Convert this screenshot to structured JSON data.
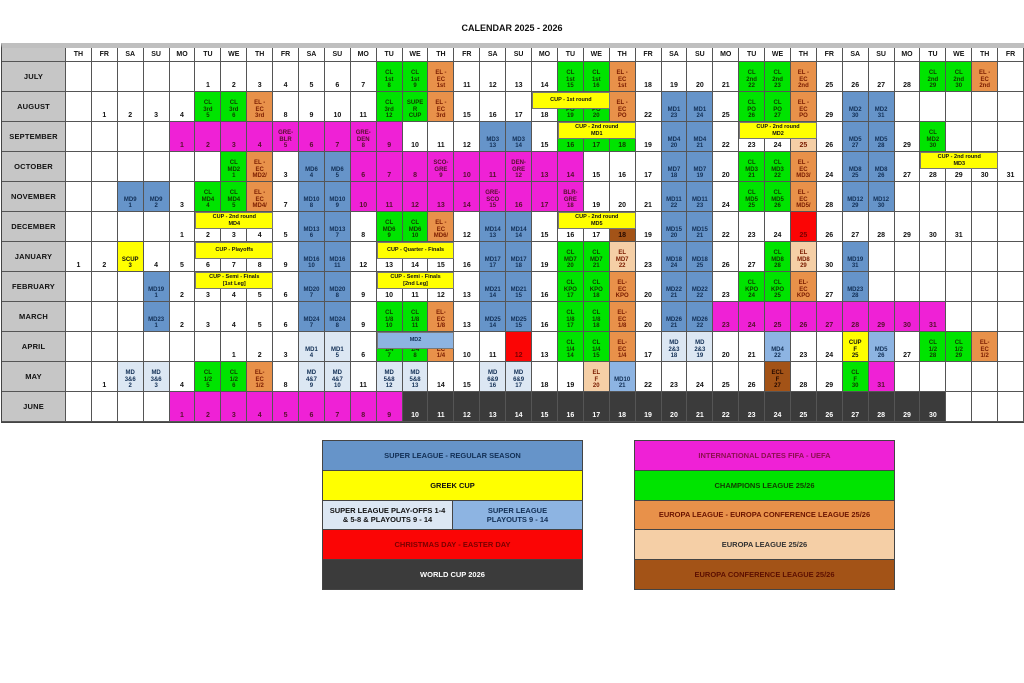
{
  "title": "CALENDAR 2025 - 2026",
  "palette": {
    "cl": "#00e400",
    "elec": "#e8914a",
    "el": "#f5cfa6",
    "ecl": "#a35317",
    "md": "#6694c9",
    "int": "#ef21d6",
    "po": "#dce7f3",
    "po2": "#8db4e2",
    "cup": "#ffff00",
    "red": "#fb0505",
    "wc": "#3b3b3b",
    "label_gray": "#c6c6c6"
  },
  "weekday_pattern": [
    "TH",
    "FR",
    "SA",
    "SU",
    "MO",
    "TU",
    "WE"
  ],
  "day_columns": 37,
  "months": [
    {
      "name": "JULY",
      "start": 6,
      "days": 31,
      "events": {
        "8": {
          "t": "cl",
          "x": "CL\n1st\n8"
        },
        "9": {
          "t": "cl",
          "x": "CL\n1st\n9"
        },
        "10": {
          "t": "elec",
          "x": "EL -\nEC\n1st"
        },
        "15": {
          "t": "cl",
          "x": "CL\n1st\n15"
        },
        "16": {
          "t": "cl",
          "x": "CL\n1st\n16"
        },
        "17": {
          "t": "elec",
          "x": "EL -\nEC\n1st"
        },
        "22": {
          "t": "cl",
          "x": "CL\n2nd\n22"
        },
        "23": {
          "t": "cl",
          "x": "CL\n2nd\n23"
        },
        "24": {
          "t": "elec",
          "x": "EL -\nEC\n2nd"
        },
        "29": {
          "t": "cl",
          "x": "CL\n2nd\n29"
        },
        "30": {
          "t": "cl",
          "x": "CL\n2nd\n30"
        },
        "31": {
          "t": "elec",
          "x": "EL -\nEC\n2nd"
        }
      },
      "banners": []
    },
    {
      "name": "AUGUST",
      "start": 2,
      "days": 31,
      "events": {
        "5": {
          "t": "cl",
          "x": "CL\n3rd\n5"
        },
        "6": {
          "t": "cl",
          "x": "CL\n3rd\n6"
        },
        "7": {
          "t": "elec",
          "x": "EL -\nEC\n3rd"
        },
        "12": {
          "t": "cl",
          "x": "CL\n3rd\n12"
        },
        "13": {
          "t": "cl",
          "x": "SUPE\nR\nCUP"
        },
        "14": {
          "t": "elec",
          "x": "EL -\nEC\n3rd"
        },
        "19": {
          "t": "cl",
          "x": "PO\n19"
        },
        "20": {
          "t": "cl",
          "x": "PO\n20"
        },
        "21": {
          "t": "elec",
          "x": "EL -\nEC\nPO"
        },
        "23": {
          "t": "md",
          "x": "MD1\n23"
        },
        "24": {
          "t": "md",
          "x": "MD1\n24"
        },
        "26": {
          "t": "cl",
          "x": "CL\nPO\n26"
        },
        "27": {
          "t": "cl",
          "x": "CL\nPO\n27"
        },
        "28": {
          "t": "elec",
          "x": "EL -\nEC\nPO"
        },
        "30": {
          "t": "md",
          "x": "MD2\n30"
        },
        "31": {
          "t": "md",
          "x": "MD2\n31"
        }
      },
      "banners": [
        {
          "x": "CUP - 1st round",
          "d1": 18,
          "d2": 20
        }
      ]
    },
    {
      "name": "SEPTEMBER",
      "start": 5,
      "days": 30,
      "events": {
        "1": {
          "t": "int"
        },
        "2": {
          "t": "int"
        },
        "3": {
          "t": "int"
        },
        "4": {
          "t": "int"
        },
        "5": {
          "t": "int",
          "x": "GRE-\nBLR\n5"
        },
        "6": {
          "t": "int"
        },
        "7": {
          "t": "int"
        },
        "8": {
          "t": "int",
          "x": "GRE-\nDEN\n8"
        },
        "9": {
          "t": "int"
        },
        "13": {
          "t": "md",
          "x": "MD3\n13"
        },
        "14": {
          "t": "md",
          "x": "MD3\n14"
        },
        "16": {
          "t": "cl"
        },
        "17": {
          "t": "cl"
        },
        "18": {
          "t": "cl"
        },
        "20": {
          "t": "md",
          "x": "MD4\n20"
        },
        "21": {
          "t": "md",
          "x": "MD4\n21"
        },
        "25": {
          "t": "el"
        },
        "27": {
          "t": "md",
          "x": "MD5\n27"
        },
        "28": {
          "t": "md",
          "x": "MD5\n28"
        },
        "30": {
          "t": "cl",
          "x": "CL\nMD2\n30"
        }
      },
      "banners": [
        {
          "x": "CUP - 2nd round\nMD1",
          "d1": 16,
          "d2": 18
        },
        {
          "x": "CUP - 2nd round\nMD2",
          "d1": 23,
          "d2": 25
        }
      ]
    },
    {
      "name": "OCTOBER",
      "start": 7,
      "days": 31,
      "events": {
        "1": {
          "t": "cl",
          "x": "CL\nMD2\n1"
        },
        "2": {
          "t": "elec",
          "x": "EL -\nEC\nMD2/"
        },
        "4": {
          "t": "md",
          "x": "MD6\n4"
        },
        "5": {
          "t": "md",
          "x": "MD6\n5"
        },
        "6": {
          "t": "int"
        },
        "7": {
          "t": "int"
        },
        "8": {
          "t": "int"
        },
        "9": {
          "t": "int",
          "x": "SCO-\nGRE\n9"
        },
        "10": {
          "t": "int"
        },
        "11": {
          "t": "int"
        },
        "12": {
          "t": "int",
          "x": "DEN-\nGRE\n12"
        },
        "13": {
          "t": "int"
        },
        "14": {
          "t": "int"
        },
        "18": {
          "t": "md",
          "x": "MD7\n18"
        },
        "19": {
          "t": "md",
          "x": "MD7\n19"
        },
        "21": {
          "t": "cl",
          "x": "CL\nMD3\n21"
        },
        "22": {
          "t": "cl",
          "x": "CL\nMD3\n22"
        },
        "23": {
          "t": "elec",
          "x": "EL -\nEC\nMD3/"
        },
        "25": {
          "t": "md",
          "x": "MD8\n25"
        },
        "26": {
          "t": "md",
          "x": "MD8\n26"
        }
      },
      "banners": [
        {
          "x": "CUP - 2nd round\nMD3",
          "d1": 28,
          "d2": 30
        }
      ]
    },
    {
      "name": "NOVEMBER",
      "start": 3,
      "days": 30,
      "events": {
        "1": {
          "t": "md",
          "x": "MD9\n1"
        },
        "2": {
          "t": "md",
          "x": "MD9\n2"
        },
        "4": {
          "t": "cl",
          "x": "CL\nMD4\n4"
        },
        "5": {
          "t": "cl",
          "x": "CL\nMD4\n5"
        },
        "6": {
          "t": "elec",
          "x": "EL -\nEC\nMD4/"
        },
        "8": {
          "t": "md",
          "x": "MD10\n8"
        },
        "9": {
          "t": "md",
          "x": "MD10\n9"
        },
        "10": {
          "t": "int"
        },
        "11": {
          "t": "int"
        },
        "12": {
          "t": "int"
        },
        "13": {
          "t": "int"
        },
        "14": {
          "t": "int"
        },
        "15": {
          "t": "int",
          "x": "GRE-\nSCO\n15"
        },
        "16": {
          "t": "int"
        },
        "17": {
          "t": "int"
        },
        "18": {
          "t": "int",
          "x": "BLR-\nGRE\n18"
        },
        "22": {
          "t": "md",
          "x": "MD11\n22"
        },
        "23": {
          "t": "md",
          "x": "MD11\n23"
        },
        "25": {
          "t": "cl",
          "x": "CL\nMD5\n25"
        },
        "26": {
          "t": "cl",
          "x": "CL\nMD5\n26"
        },
        "27": {
          "t": "elec",
          "x": "EL -\nEC\nMD5/"
        },
        "29": {
          "t": "md",
          "x": "MD12\n29"
        },
        "30": {
          "t": "md",
          "x": "MD12\n30"
        }
      },
      "banners": []
    },
    {
      "name": "DECEMBER",
      "start": 5,
      "days": 31,
      "events": {
        "6": {
          "t": "md",
          "x": "MD13\n6"
        },
        "7": {
          "t": "md",
          "x": "MD13\n7"
        },
        "9": {
          "t": "cl",
          "x": "CL\nMD6\n9"
        },
        "10": {
          "t": "cl",
          "x": "CL\nMD6\n10"
        },
        "11": {
          "t": "elec",
          "x": "EL -\nEC\nMD6/"
        },
        "13": {
          "t": "md",
          "x": "MD14\n13"
        },
        "14": {
          "t": "md",
          "x": "MD14\n14"
        },
        "18": {
          "t": "ecl"
        },
        "20": {
          "t": "md",
          "x": "MD15\n20"
        },
        "21": {
          "t": "md",
          "x": "MD15\n21"
        },
        "25": {
          "t": "red"
        }
      },
      "banners": [
        {
          "x": "CUP - 2nd round\nMD4",
          "d1": 2,
          "d2": 4
        },
        {
          "x": "CUP - 2nd round\nMD5",
          "d1": 16,
          "d2": 18
        }
      ]
    },
    {
      "name": "JANUARY",
      "start": 1,
      "days": 31,
      "events": {
        "3": {
          "t": "cup",
          "x": "SCUP\n3"
        },
        "10": {
          "t": "md",
          "x": "MD16\n10"
        },
        "11": {
          "t": "md",
          "x": "MD16\n11"
        },
        "17": {
          "t": "md",
          "x": "MD17\n17"
        },
        "18": {
          "t": "md",
          "x": "MD17\n18"
        },
        "20": {
          "t": "cl",
          "x": "CL\nMD7\n20"
        },
        "21": {
          "t": "cl",
          "x": "CL\nMD7\n21"
        },
        "22": {
          "t": "el",
          "x": "EL\nMD7\n22"
        },
        "24": {
          "t": "md",
          "x": "MD18\n24"
        },
        "25": {
          "t": "md",
          "x": "MD18\n25"
        },
        "28": {
          "t": "cl",
          "x": "CL\nMD8\n28"
        },
        "29": {
          "t": "el",
          "x": "EL\nMD8\n29"
        },
        "31": {
          "t": "md",
          "x": "MD19\n31"
        }
      },
      "banners": [
        {
          "x": "CUP - Playoffs",
          "d1": 6,
          "d2": 8
        },
        {
          "x": "CUP - Quarter - Finals",
          "d1": 13,
          "d2": 15
        }
      ]
    },
    {
      "name": "FEBRUARY",
      "start": 4,
      "days": 28,
      "events": {
        "1": {
          "t": "md",
          "x": "MD19\n1"
        },
        "7": {
          "t": "md",
          "x": "MD20\n7"
        },
        "8": {
          "t": "md",
          "x": "MD20\n8"
        },
        "14": {
          "t": "md",
          "x": "MD21\n14"
        },
        "15": {
          "t": "md",
          "x": "MD21\n15"
        },
        "17": {
          "t": "cl",
          "x": "CL\nKPO\n17"
        },
        "18": {
          "t": "cl",
          "x": "CL\nKPO\n18"
        },
        "19": {
          "t": "elec",
          "x": "EL-\nEC\nKPO"
        },
        "21": {
          "t": "md",
          "x": "MD22\n21"
        },
        "22": {
          "t": "md",
          "x": "MD22\n22"
        },
        "24": {
          "t": "cl",
          "x": "CL\nKPO\n24"
        },
        "25": {
          "t": "cl",
          "x": "CL\nKPO\n25"
        },
        "26": {
          "t": "elec",
          "x": "EL-\nEC\nKPO"
        },
        "28": {
          "t": "md",
          "x": "MD23\n28"
        }
      },
      "banners": [
        {
          "x": "CUP - Semi - Finals\n[1st Leg]",
          "d1": 3,
          "d2": 5
        },
        {
          "x": "CUP - Semi - Finals\n[2nd Leg]",
          "d1": 10,
          "d2": 12
        }
      ]
    },
    {
      "name": "MARCH",
      "start": 4,
      "days": 31,
      "events": {
        "1": {
          "t": "md",
          "x": "MD23\n1"
        },
        "7": {
          "t": "md",
          "x": "MD24\n7"
        },
        "8": {
          "t": "md",
          "x": "MD24\n8"
        },
        "10": {
          "t": "cl",
          "x": "CL\n1/8\n10"
        },
        "11": {
          "t": "cl",
          "x": "CL\n1/8\n11"
        },
        "12": {
          "t": "elec",
          "x": "EL-\nEC\n1/8"
        },
        "14": {
          "t": "md",
          "x": "MD25\n14"
        },
        "15": {
          "t": "md",
          "x": "MD25\n15"
        },
        "17": {
          "t": "cl",
          "x": "CL\n1/8\n17"
        },
        "18": {
          "t": "cl",
          "x": "CL\n1/8\n18"
        },
        "19": {
          "t": "elec",
          "x": "EL-\nEC\n1/8"
        },
        "21": {
          "t": "md",
          "x": "MD26\n21"
        },
        "22": {
          "t": "md",
          "x": "MD26\n22"
        },
        "23": {
          "t": "int"
        },
        "24": {
          "t": "int"
        },
        "25": {
          "t": "int"
        },
        "26": {
          "t": "int"
        },
        "27": {
          "t": "int"
        },
        "28": {
          "t": "int"
        },
        "29": {
          "t": "int"
        },
        "30": {
          "t": "int"
        },
        "31": {
          "t": "int"
        }
      },
      "banners": []
    },
    {
      "name": "APRIL",
      "start": 7,
      "days": 30,
      "events": {
        "4": {
          "t": "po",
          "x": "MD1\n4"
        },
        "5": {
          "t": "po",
          "x": "MD1\n5"
        },
        "7": {
          "t": "cl",
          "x": "CL\n1/4\n7"
        },
        "8": {
          "t": "cl",
          "x": "CL\n1/4\n8"
        },
        "9": {
          "t": "elec",
          "x": "EL-\nEC\n1/4"
        },
        "12": {
          "t": "red"
        },
        "14": {
          "t": "cl",
          "x": "CL\n1/4\n14"
        },
        "15": {
          "t": "cl",
          "x": "CL\n1/4\n15"
        },
        "16": {
          "t": "elec",
          "x": "EL-\nEC\n1/4"
        },
        "18": {
          "t": "po",
          "x": "MD\n2&3\n18"
        },
        "19": {
          "t": "po",
          "x": "MD\n2&3\n19"
        },
        "22": {
          "t": "po2",
          "x": "MD4\n22"
        },
        "25": {
          "t": "cup",
          "x": "CUP\nF\n25"
        },
        "26": {
          "t": "po2",
          "x": "MD5\n26"
        },
        "28": {
          "t": "cl",
          "x": "CL\n1/2\n28"
        },
        "29": {
          "t": "cl",
          "x": "CL\n1/2\n29"
        },
        "30": {
          "t": "elec",
          "x": "EL-\nEC\n1/2"
        }
      },
      "banners": [
        {
          "x": "MD2",
          "d1": 7,
          "d2": 9,
          "v": "blue"
        }
      ]
    },
    {
      "name": "MAY",
      "start": 2,
      "days": 31,
      "events": {
        "2": {
          "t": "po",
          "x": "MD\n3&6\n2"
        },
        "3": {
          "t": "po",
          "x": "MD\n3&6\n3"
        },
        "5": {
          "t": "cl",
          "x": "CL\n1/2\n5"
        },
        "6": {
          "t": "cl",
          "x": "CL\n1/2\n6"
        },
        "7": {
          "t": "elec",
          "x": "EL-\nEC\n1/2"
        },
        "9": {
          "t": "po",
          "x": "MD\n4&7\n9"
        },
        "10": {
          "t": "po",
          "x": "MD\n4&7\n10"
        },
        "12": {
          "t": "po",
          "x": "MD\n5&8\n12"
        },
        "13": {
          "t": "po",
          "x": "MD\n5&8\n13"
        },
        "16": {
          "t": "po",
          "x": "MD\n6&9\n16"
        },
        "17": {
          "t": "po",
          "x": "MD\n6&9\n17"
        },
        "20": {
          "t": "el",
          "x": "EL\nF\n20"
        },
        "21": {
          "t": "po2",
          "x": "MD10\n21"
        },
        "27": {
          "t": "ecl",
          "x": "ECL\nF\n27"
        },
        "30": {
          "t": "cl",
          "x": "CL\nF\n30"
        },
        "31": {
          "t": "int"
        }
      },
      "banners": []
    },
    {
      "name": "JUNE",
      "start": 5,
      "days": 30,
      "events": {
        "1": {
          "t": "int"
        },
        "2": {
          "t": "int"
        },
        "3": {
          "t": "int"
        },
        "4": {
          "t": "int"
        },
        "5": {
          "t": "int"
        },
        "6": {
          "t": "int"
        },
        "7": {
          "t": "int"
        },
        "8": {
          "t": "int"
        },
        "9": {
          "t": "int"
        },
        "10": {
          "t": "wc"
        },
        "11": {
          "t": "wc"
        },
        "12": {
          "t": "wc"
        },
        "13": {
          "t": "wc"
        },
        "14": {
          "t": "wc"
        },
        "15": {
          "t": "wc"
        },
        "16": {
          "t": "wc"
        },
        "17": {
          "t": "wc"
        },
        "18": {
          "t": "wc"
        },
        "19": {
          "t": "wc"
        },
        "20": {
          "t": "wc"
        },
        "21": {
          "t": "wc"
        },
        "22": {
          "t": "wc"
        },
        "23": {
          "t": "wc"
        },
        "24": {
          "t": "wc"
        },
        "25": {
          "t": "wc"
        },
        "26": {
          "t": "wc"
        },
        "27": {
          "t": "wc"
        },
        "28": {
          "t": "wc"
        },
        "29": {
          "t": "wc"
        },
        "30": {
          "t": "wc"
        }
      },
      "banners": []
    }
  ],
  "legend_left": [
    {
      "text": "SUPER LEAGUE - REGULAR SEASON",
      "bg": "md",
      "color": "#122f55"
    },
    {
      "text": "GREEK CUP",
      "bg": "cup",
      "color": "#111111"
    },
    {
      "split": [
        {
          "text": "SUPER LEAGUE PLAY-OFFS 1-4\n& 5-8 & PLAYOUTS 9 - 14",
          "bg": "po",
          "color": "#111111"
        },
        {
          "text": "SUPER LEAGUE\nPLAYOUTS 9 - 14",
          "bg": "po2",
          "color": "#122f55"
        }
      ]
    },
    {
      "text": "CHRISTMAS DAY - EASTER DAY",
      "bg": "red",
      "color": "#7a0000"
    },
    {
      "text": "WORLD CUP 2026",
      "bg": "wc",
      "color": "#ffffff"
    }
  ],
  "legend_right": [
    {
      "text": "INTERNATIONAL DATES FIFA - UEFA",
      "bg": "int",
      "color": "#8c0f4f"
    },
    {
      "text": "CHAMPIONS LEAGUE 25/26",
      "bg": "cl",
      "color": "#113b00"
    },
    {
      "text": "EUROPA LEAGUE - EUROPA CONFERENCE LEAGUE 25/26",
      "bg": "elec",
      "color": "#6b1400"
    },
    {
      "text": "EUROPA LEAGUE 25/26",
      "bg": "el",
      "color": "#333333"
    },
    {
      "text": "EUROPA CONFERENCE LEAGUE 25/26",
      "bg": "ecl",
      "color": "#5c0f00"
    }
  ]
}
